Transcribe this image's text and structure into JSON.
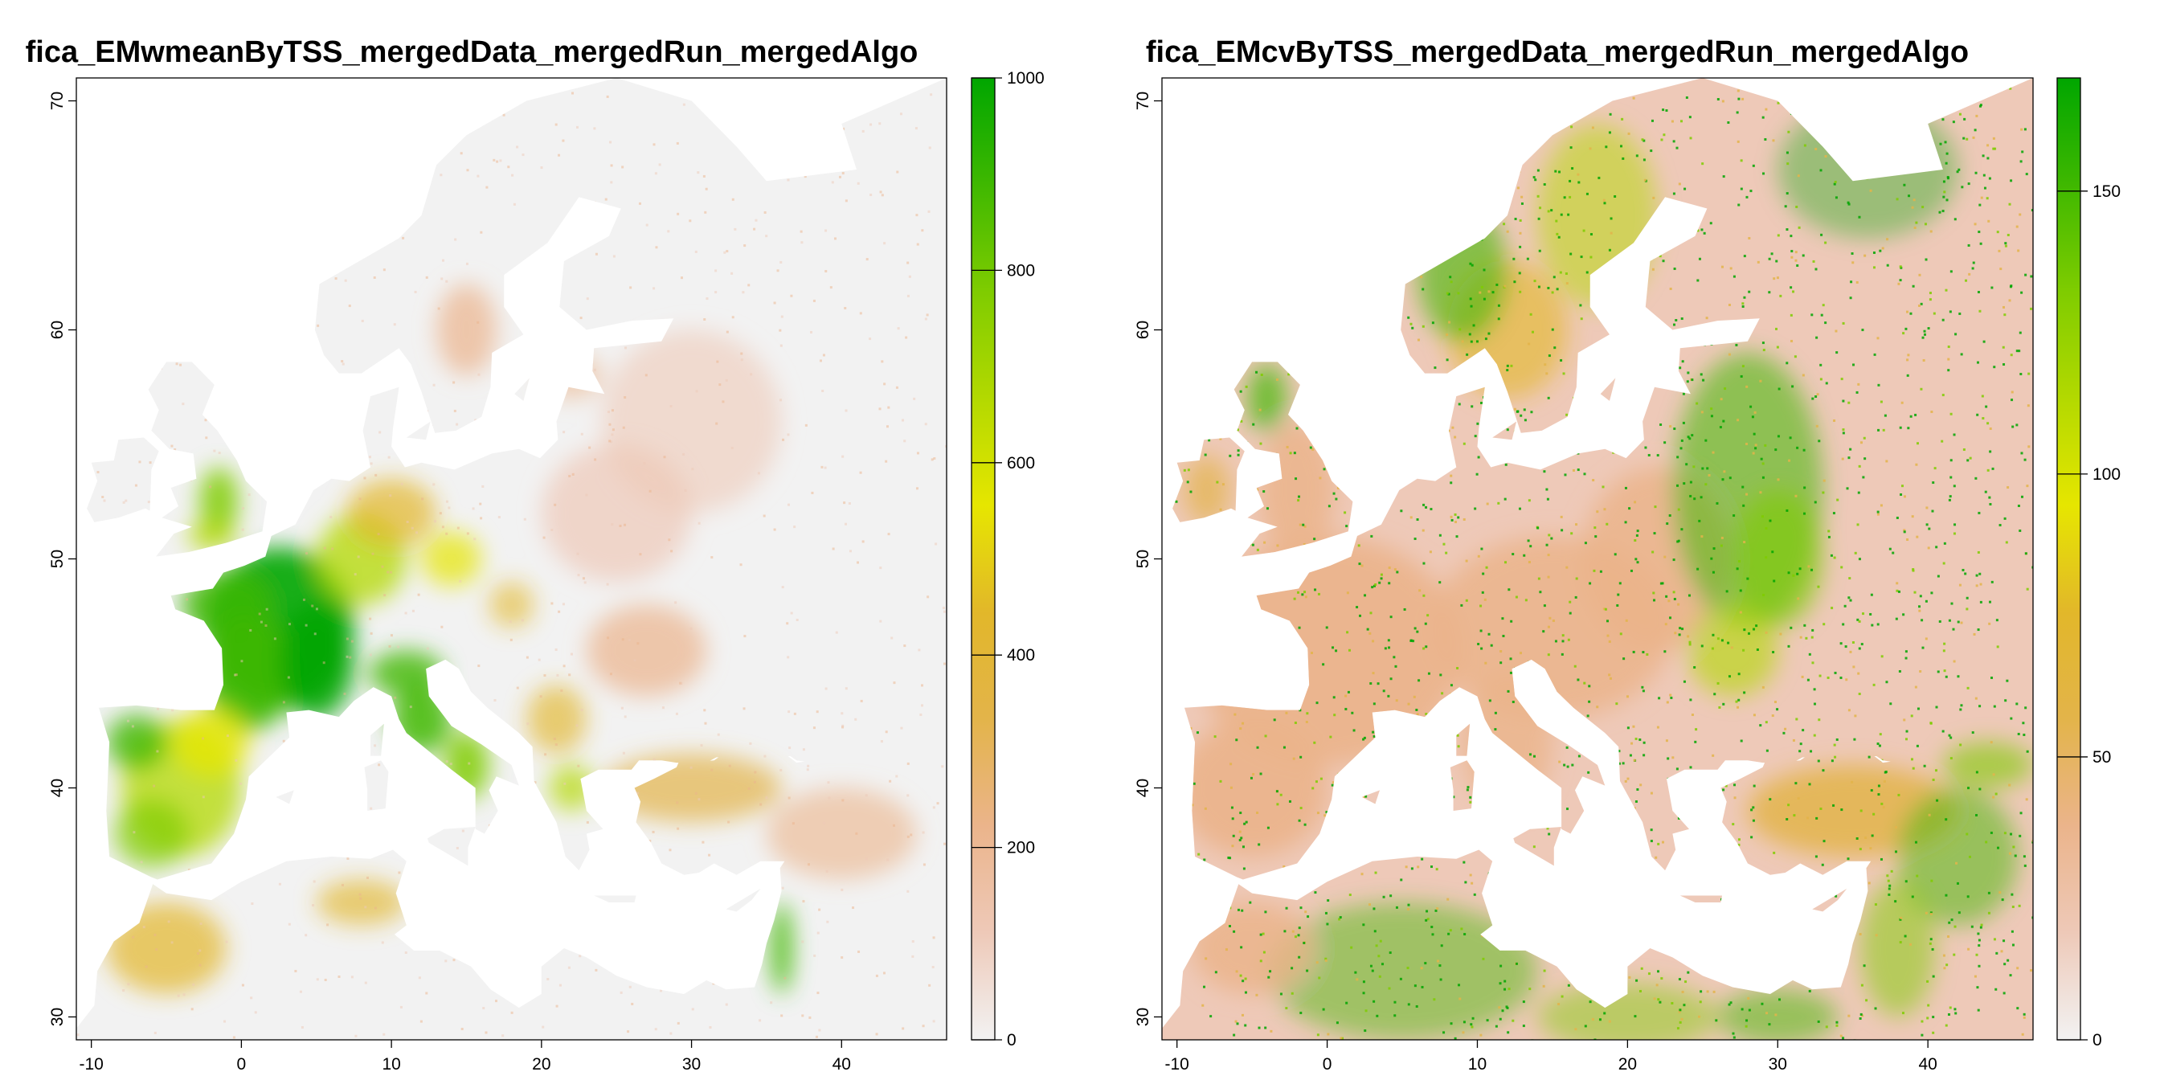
{
  "colors": {
    "ramp": [
      "#f2f2f2",
      "#eec9b8",
      "#ebb48b",
      "#e3b44a",
      "#e2b72a",
      "#e6e600",
      "#b3d900",
      "#7fcc00",
      "#3fb800",
      "#00a600"
    ],
    "na_fill": "#ffffff",
    "background_fill": "#f2f2f2"
  },
  "panels": [
    {
      "title": "fica_EMwmeanByTSS_mergedData_mergedRun_mergedAlgo",
      "map_data": {
        "type": "raster",
        "xlim": [
          -11,
          47
        ],
        "ylim": [
          29,
          71
        ],
        "x_ticks": [
          -10,
          0,
          10,
          20,
          30,
          40
        ],
        "y_ticks": [
          30,
          40,
          50,
          60,
          70
        ],
        "legend": {
          "range": [
            0,
            1000
          ],
          "ticks": [
            0,
            200,
            400,
            600,
            800,
            1000
          ],
          "placement": "right"
        },
        "high_value_regions": [
          "France",
          "Iberian Peninsula",
          "Italy",
          "England",
          "Germany",
          "Levant coast"
        ]
      }
    },
    {
      "title": "fica_EMcvByTSS_mergedData_mergedRun_mergedAlgo",
      "map_data": {
        "type": "raster",
        "xlim": [
          -11,
          47
        ],
        "ylim": [
          29,
          71
        ],
        "x_ticks": [
          -10,
          0,
          10,
          20,
          30,
          40
        ],
        "y_ticks": [
          30,
          40,
          50,
          60,
          70
        ],
        "legend": {
          "range": [
            0,
            170
          ],
          "ticks": [
            0,
            50,
            100,
            150
          ],
          "placement": "right"
        },
        "high_value_regions": [
          "Scandinavia",
          "Eastern Europe",
          "North Africa",
          "Anatolia",
          "Scotland"
        ]
      }
    }
  ]
}
